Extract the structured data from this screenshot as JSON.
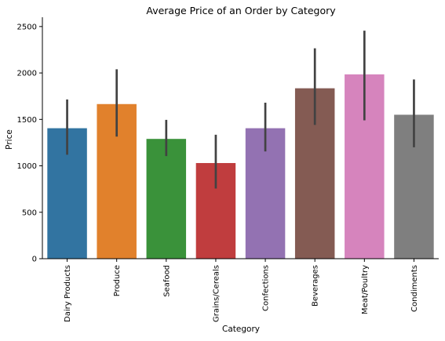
{
  "chart_data": {
    "type": "bar",
    "title": "Average Price of an Order by Category",
    "xlabel": "Category",
    "ylabel": "Price",
    "ylim": [
      0,
      2600
    ],
    "yticks": [
      0,
      500,
      1000,
      1500,
      2000,
      2500
    ],
    "grid": false,
    "legend": "none",
    "categories": [
      "Dairy Products",
      "Produce",
      "Seafood",
      "Grains/Cereals",
      "Confections",
      "Beverages",
      "Meat/Poultry",
      "Condiments"
    ],
    "values": [
      1405,
      1665,
      1290,
      1030,
      1405,
      1835,
      1985,
      1550
    ],
    "error_low": [
      1120,
      1315,
      1105,
      755,
      1155,
      1440,
      1490,
      1200
    ],
    "error_high": [
      1715,
      2040,
      1495,
      1335,
      1680,
      2265,
      2455,
      1930
    ],
    "colors": [
      "#3274a1",
      "#e1812c",
      "#3a923a",
      "#c03d3e",
      "#9372b2",
      "#845b53",
      "#d684bd",
      "#7f7f7f"
    ],
    "error_color": "#424242"
  }
}
